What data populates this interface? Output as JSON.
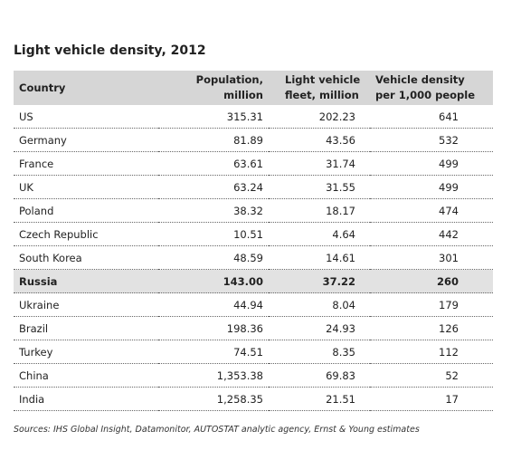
{
  "title": "Light vehicle density, 2012",
  "table": {
    "headers": [
      "Country",
      "Population, million",
      "Light vehicle fleet, million",
      "Vehicle density per 1,000 people"
    ],
    "rows": [
      [
        "US",
        "315.31",
        "202.23",
        "641"
      ],
      [
        "Germany",
        "81.89",
        "43.56",
        "532"
      ],
      [
        "France",
        "63.61",
        "31.74",
        "499"
      ],
      [
        "UK",
        "63.24",
        "31.55",
        "499"
      ],
      [
        "Poland",
        "38.32",
        "18.17",
        "474"
      ],
      [
        "Czech Republic",
        "10.51",
        "4.64",
        "442"
      ],
      [
        "South Korea",
        "48.59",
        "14.61",
        "301"
      ],
      [
        "Russia",
        "143.00",
        "37.22",
        "260"
      ],
      [
        "Ukraine",
        "44.94",
        "8.04",
        "179"
      ],
      [
        "Brazil",
        "198.36",
        "24.93",
        "126"
      ],
      [
        "Turkey",
        "74.51",
        "8.35",
        "112"
      ],
      [
        "China",
        "1,353.38",
        "69.83",
        "52"
      ],
      [
        "India",
        "1,258.35",
        "21.51",
        "17"
      ]
    ]
  },
  "source": "Sources: IHS Global Insight, Datamonitor, AUTOSTAT analytic agency, Ernst & Young estimates"
}
